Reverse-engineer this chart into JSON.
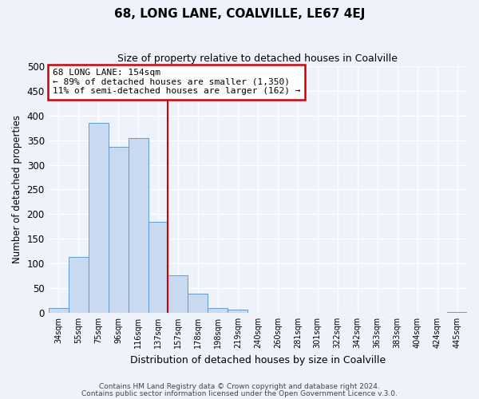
{
  "title": "68, LONG LANE, COALVILLE, LE67 4EJ",
  "subtitle": "Size of property relative to detached houses in Coalville",
  "xlabel": "Distribution of detached houses by size in Coalville",
  "ylabel": "Number of detached properties",
  "bin_labels": [
    "34sqm",
    "55sqm",
    "75sqm",
    "96sqm",
    "116sqm",
    "137sqm",
    "157sqm",
    "178sqm",
    "198sqm",
    "219sqm",
    "240sqm",
    "260sqm",
    "281sqm",
    "301sqm",
    "322sqm",
    "342sqm",
    "363sqm",
    "383sqm",
    "404sqm",
    "424sqm",
    "445sqm"
  ],
  "bar_heights": [
    10,
    113,
    385,
    336,
    354,
    185,
    76,
    39,
    10,
    7,
    0,
    0,
    0,
    0,
    0,
    0,
    0,
    0,
    0,
    0,
    2
  ],
  "bar_color": "#c9d9f0",
  "bar_edge_color": "#6699cc",
  "vline_x": 6,
  "vline_color": "#cc0000",
  "annotation_text": "68 LONG LANE: 154sqm\n← 89% of detached houses are smaller (1,350)\n11% of semi-detached houses are larger (162) →",
  "annotation_box_color": "#ffffff",
  "annotation_box_edge": "#cc0000",
  "ylim": [
    0,
    500
  ],
  "yticks": [
    0,
    50,
    100,
    150,
    200,
    250,
    300,
    350,
    400,
    450,
    500
  ],
  "footer1": "Contains HM Land Registry data © Crown copyright and database right 2024.",
  "footer2": "Contains public sector information licensed under the Open Government Licence v.3.0.",
  "bg_color": "#eef2fb",
  "grid_color": "#ffffff"
}
